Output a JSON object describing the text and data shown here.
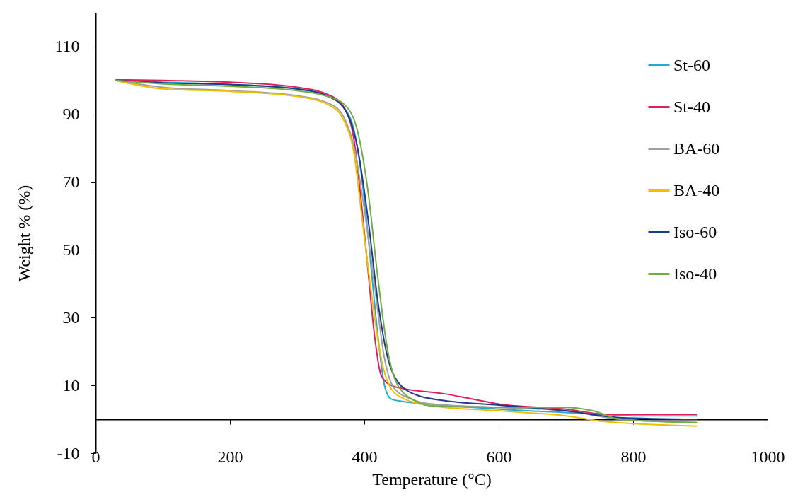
{
  "chart_data": {
    "type": "line",
    "xlabel": "Temperature (°C)",
    "ylabel": "Weight % (%)",
    "xlim": [
      0,
      1000
    ],
    "xticks": [
      0,
      200,
      400,
      600,
      800,
      1000
    ],
    "ylim": [
      -10,
      120
    ],
    "yticks": [
      -10,
      10,
      30,
      50,
      70,
      90,
      110
    ],
    "legend": "top right",
    "series": [
      {
        "name": "St-60",
        "color": "#2aa7d0",
        "x": [
          30,
          100,
          200,
          300,
          350,
          370,
          385,
          400,
          410,
          420,
          430,
          440,
          460,
          500,
          600,
          700,
          750,
          800,
          895
        ],
        "values": [
          100,
          99.5,
          98.8,
          97.5,
          95,
          92,
          85,
          65,
          45,
          25,
          10,
          6,
          5.2,
          4.5,
          3,
          2,
          1.5,
          1,
          1
        ]
      },
      {
        "name": "St-40",
        "color": "#e0205a",
        "x": [
          30,
          100,
          200,
          300,
          350,
          370,
          385,
          395,
          405,
          415,
          425,
          440,
          460,
          520,
          560,
          600,
          700,
          760,
          895
        ],
        "values": [
          100.2,
          100,
          99.5,
          98,
          95.5,
          92,
          82,
          65,
          45,
          25,
          13,
          10,
          9,
          7.5,
          6,
          4.5,
          3,
          1.5,
          1.5
        ]
      },
      {
        "name": "BA-60",
        "color": "#a0a0a0",
        "x": [
          30,
          100,
          200,
          300,
          350,
          370,
          385,
          400,
          415,
          430,
          445,
          470,
          500,
          600,
          700,
          780,
          895
        ],
        "values": [
          100,
          98,
          97,
          95.5,
          93,
          89,
          80,
          62,
          40,
          18,
          9,
          6,
          4.5,
          3.5,
          2.5,
          0,
          -1
        ]
      },
      {
        "name": "BA-40",
        "color": "#f0c000",
        "x": [
          30,
          100,
          200,
          300,
          350,
          370,
          385,
          395,
          410,
          425,
          440,
          460,
          500,
          600,
          700,
          750,
          895
        ],
        "values": [
          100,
          97.5,
          96.8,
          95.3,
          92.5,
          88,
          78,
          62,
          38,
          18,
          9,
          6,
          4,
          2.5,
          1,
          -0.5,
          -2
        ]
      },
      {
        "name": "Iso-60",
        "color": "#1f3a8a",
        "x": [
          30,
          100,
          200,
          300,
          350,
          375,
          390,
          405,
          420,
          435,
          450,
          480,
          520,
          600,
          700,
          780,
          895
        ],
        "values": [
          100,
          99.3,
          98.8,
          97.5,
          95,
          90,
          80,
          60,
          35,
          18,
          11,
          7,
          5.5,
          4.2,
          2.5,
          0.5,
          0
        ]
      },
      {
        "name": "Iso-40",
        "color": "#70ad47",
        "x": [
          30,
          100,
          200,
          300,
          350,
          370,
          390,
          405,
          420,
          435,
          450,
          480,
          500,
          600,
          700,
          740,
          780,
          895
        ],
        "values": [
          100,
          99,
          98.3,
          97,
          95,
          93,
          85,
          68,
          42,
          20,
          10,
          5,
          4,
          3.5,
          3.5,
          2.5,
          0,
          -1
        ]
      }
    ]
  }
}
